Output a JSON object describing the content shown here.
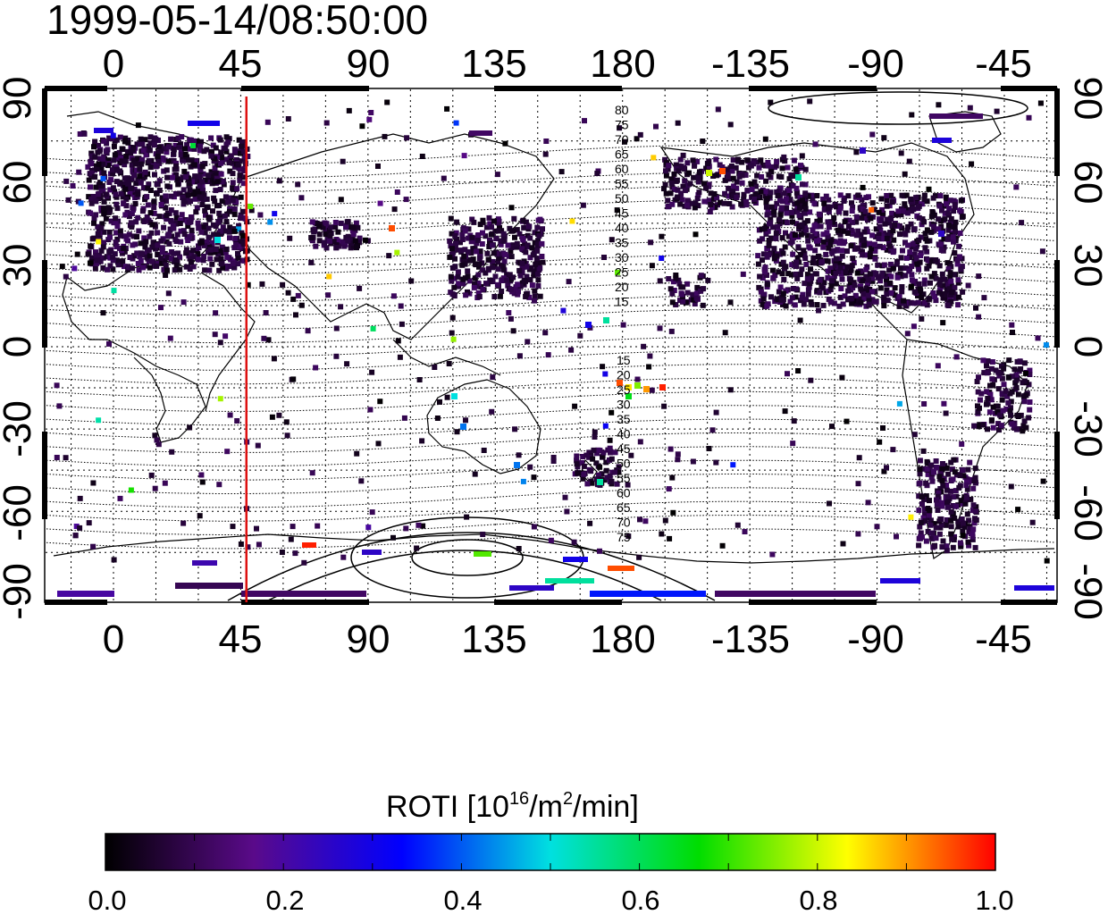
{
  "timestamp": "1999-05-14/08:50:00",
  "map": {
    "lon_ticks": [
      "0",
      "45",
      "90",
      "135",
      "180",
      "-135",
      "-90",
      "-45"
    ],
    "lat_ticks_left": [
      "90",
      "60",
      "30",
      "0",
      "-30",
      "-60",
      "-90"
    ],
    "lat_ticks_right": [
      "90",
      "60",
      "30",
      "0",
      "-30",
      "-60",
      "-90"
    ],
    "marker_line_lon": 47,
    "marker_line_color": "#dd1111",
    "contour_labels_north": [
      "80",
      "75",
      "70",
      "65",
      "60",
      "55",
      "50",
      "45",
      "40",
      "35",
      "30",
      "25",
      "20",
      "15"
    ],
    "contour_labels_south": [
      "15",
      "20",
      "25",
      "30",
      "35",
      "40",
      "45",
      "50",
      "55",
      "60",
      "65",
      "70",
      "75"
    ]
  },
  "colorbar": {
    "title_prefix": "ROTI  [10",
    "title_exp1": "16",
    "title_mid": "/m",
    "title_exp2": "2",
    "title_suffix": "/min]",
    "tick_labels": [
      "0.0",
      "0.2",
      "0.4",
      "0.6",
      "0.8",
      "1.0"
    ],
    "min": 0.0,
    "max": 1.0,
    "colors": [
      "#000000",
      "#5a0a8a",
      "#0000ff",
      "#00e0e0",
      "#00dd00",
      "#ffff00",
      "#ff0000"
    ]
  }
}
